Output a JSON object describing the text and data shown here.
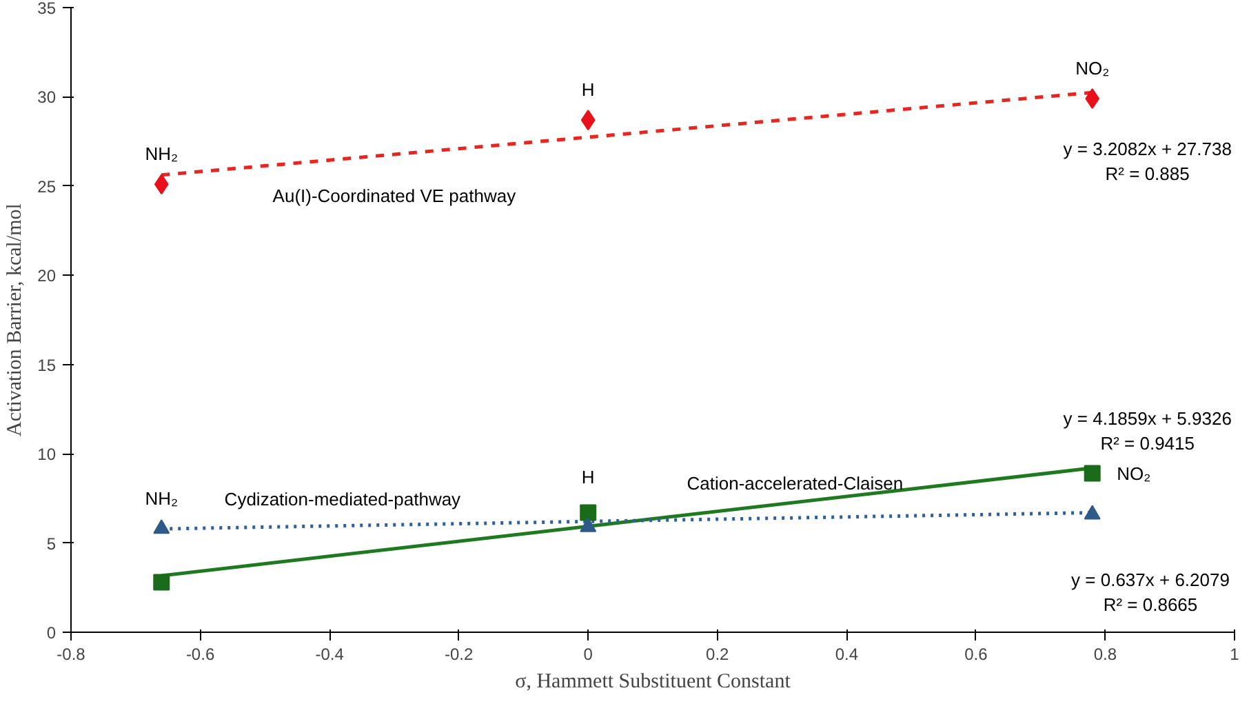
{
  "chart_data": {
    "type": "scatter",
    "xlabel": "σ, Hammett Substituent Constant",
    "ylabel": "Activation Barrier, kcal/mol",
    "xlim": [
      -0.8,
      1
    ],
    "xticks": [
      -0.8,
      -0.6,
      -0.4,
      -0.2,
      0,
      0.2,
      0.4,
      0.6,
      0.8,
      1
    ],
    "ylim": [
      0,
      35
    ],
    "yticks": [
      0,
      5,
      10,
      15,
      20,
      25,
      30,
      35
    ],
    "grid": false,
    "series": [
      {
        "type": "line",
        "color": "#e8251f",
        "line_style": "dashed",
        "marker": "none",
        "x": [
          -0.66,
          0.78
        ],
        "values": [
          25.62,
          30.24
        ]
      },
      {
        "type": "line",
        "color": "#1e7a1e",
        "line_style": "solid",
        "marker": "none",
        "x": [
          -0.66,
          0.78
        ],
        "values": [
          3.17,
          9.2
        ]
      },
      {
        "type": "line",
        "color": "#2e5fa0",
        "line_style": "dotted",
        "marker": "none",
        "x": [
          -0.66,
          0.78
        ],
        "values": [
          5.79,
          6.7
        ]
      },
      {
        "color": "#e8101a",
        "marker": "diamond",
        "x": [
          -0.66,
          0,
          0.78
        ],
        "values": [
          25.1,
          28.7,
          29.9
        ]
      },
      {
        "color": "#1a6b1a",
        "marker": "square",
        "x": [
          -0.66,
          0,
          0.78
        ],
        "values": [
          2.8,
          6.7,
          8.9
        ]
      },
      {
        "color": "#2e5a8a",
        "marker": "triangle",
        "x": [
          -0.66,
          0,
          0.78
        ],
        "values": [
          5.8,
          5.9,
          6.6
        ]
      }
    ],
    "annotations": [
      {
        "text": "NH₂",
        "x": -0.66,
        "y": 25.1
      },
      {
        "text": "H",
        "x": 0,
        "y": 28.7
      },
      {
        "text": "NO₂",
        "x": 0.78,
        "y": 29.9
      },
      {
        "text": "Au(I)-Coordinated VE pathway",
        "x": -0.3,
        "y": 26.78
      },
      {
        "text": "y = 3.2082x + 27.738\nR² = 0.885",
        "x": 0.78,
        "y": 30.24
      },
      {
        "text": "NH₂",
        "x": -0.66,
        "y": 5.8
      },
      {
        "text": "H",
        "x": 0,
        "y": 6.7
      },
      {
        "text": "NO₂",
        "x": 0.78,
        "y": 8.9
      },
      {
        "text": "Cydization-mediated-pathway",
        "x": -0.38,
        "y": 5.97
      },
      {
        "text": "Cation-accelerated-Claisen",
        "x": 0.32,
        "y": 7.27
      },
      {
        "text": "y = 4.1859x + 5.9326\nR² = 0.9415",
        "x": 0.78,
        "y": 9.2
      },
      "y = 0.637x + 6.2079\nR² = 0.8665"
    ]
  }
}
